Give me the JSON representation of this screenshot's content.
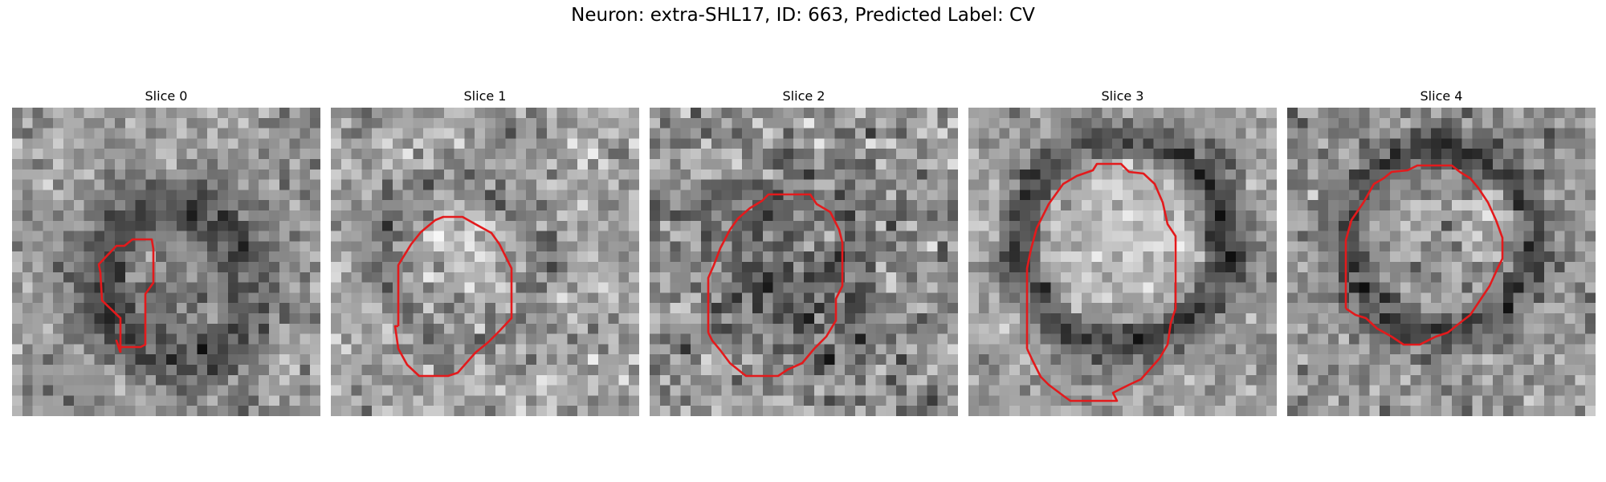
{
  "figure": {
    "title": "Neuron: extra-SHL17, ID: 663, Predicted Label: CV",
    "contour_color": "#e31a1c",
    "colormap": "gray",
    "panels": [
      {
        "title": "Slice 0"
      },
      {
        "title": "Slice 1"
      },
      {
        "title": "Slice 2"
      },
      {
        "title": "Slice 3"
      },
      {
        "title": "Slice 4"
      }
    ]
  }
}
